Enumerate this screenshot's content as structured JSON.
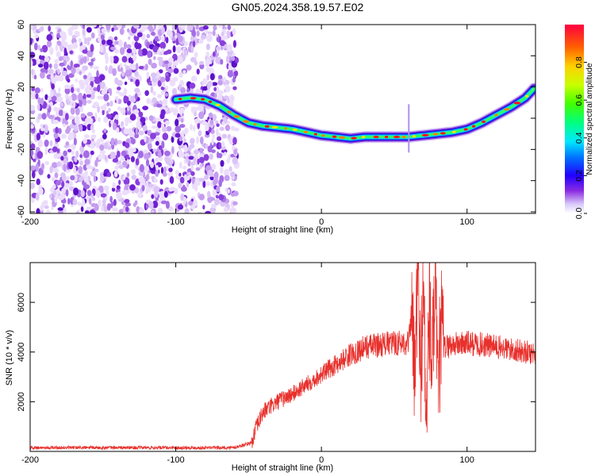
{
  "title": "GN05.2024.358.19.57.E02",
  "chart_data": [
    {
      "type": "heatmap",
      "xlabel": "Height of straight line (km)",
      "ylabel": "Frequency (Hz)",
      "xlim": [
        -200,
        147
      ],
      "ylim": [
        -61,
        60
      ],
      "x_ticks": [
        "-200",
        "-100",
        "0",
        "100"
      ],
      "y_ticks": [
        "60",
        "40",
        "20",
        "0",
        "-20",
        "-40",
        "-60"
      ],
      "colorbar": {
        "label": "Normalized spectral amplitude",
        "range": [
          0,
          1
        ],
        "ticks": [
          "0.0",
          "0.2",
          "0.4",
          "0.6",
          "0.8"
        ]
      },
      "noise_region_x": [
        -200,
        -58
      ],
      "trace": {
        "x": [
          -100,
          -90,
          -80,
          -70,
          -60,
          -50,
          -40,
          -30,
          -20,
          -10,
          0,
          10,
          20,
          30,
          40,
          50,
          60,
          70,
          80,
          90,
          100,
          110,
          120,
          130,
          140,
          147
        ],
        "y": [
          12,
          13,
          12,
          8,
          2,
          -3,
          -5,
          -6,
          -7,
          -9,
          -11,
          -12,
          -13,
          -12,
          -12,
          -12,
          -12,
          -11,
          -10,
          -9,
          -7,
          -3,
          2,
          7,
          13,
          20
        ]
      }
    },
    {
      "type": "line",
      "xlabel": "Height of straight line (km)",
      "ylabel": "SNR (10 * v/v)",
      "xlim": [
        -200,
        147
      ],
      "ylim": [
        0,
        7600
      ],
      "x_ticks": [
        "-200",
        "-100",
        "0",
        "100"
      ],
      "y_ticks": [
        "2000",
        "4000",
        "6000"
      ],
      "color": "#e8302c",
      "series": [
        {
          "x": [
            -200,
            -150,
            -100,
            -60,
            -48,
            -45,
            -40,
            -30,
            -20,
            -10,
            0,
            10,
            20,
            30,
            40,
            50,
            60,
            62,
            64,
            66,
            68,
            70,
            72,
            74,
            76,
            78,
            80,
            82,
            84,
            90,
            100,
            110,
            120,
            130,
            140,
            147
          ],
          "y": [
            150,
            150,
            150,
            150,
            350,
            900,
            1600,
            2000,
            2300,
            2700,
            3100,
            3500,
            3900,
            4200,
            4300,
            4350,
            4400,
            5500,
            2500,
            7200,
            3000,
            6500,
            1000,
            5800,
            3200,
            6800,
            2000,
            5000,
            4200,
            4300,
            4350,
            4300,
            4200,
            4100,
            4000,
            3950
          ]
        }
      ]
    }
  ]
}
